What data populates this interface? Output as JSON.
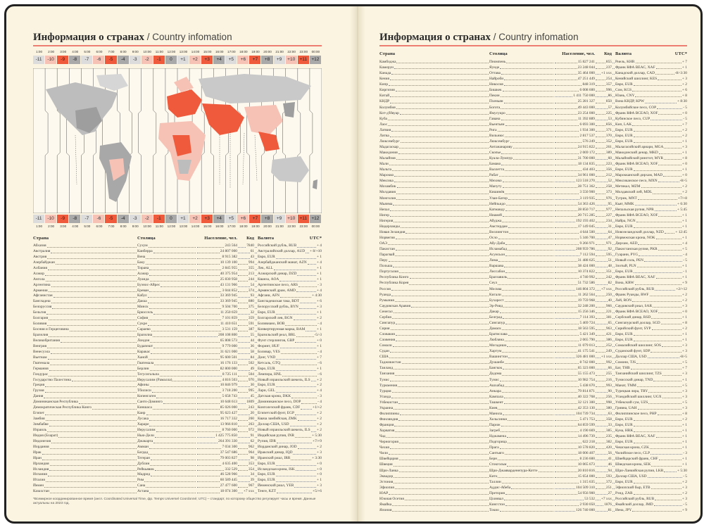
{
  "title_ru": "Информация о странах",
  "title_en": "/ Country infomation",
  "columns": {
    "country": "Страна",
    "capital": "Столица",
    "population": "Население, чел.",
    "code": "Код",
    "currency": "Валюта",
    "utc": "UTC*"
  },
  "timezones": {
    "offsets": [
      "-11",
      "-10",
      "-9",
      "-8",
      "-7",
      "-6",
      "-5",
      "-4",
      "-3",
      "-2",
      "-1",
      "0",
      "+1",
      "+2",
      "+3",
      "+4",
      "+5",
      "+6",
      "+7",
      "+8",
      "+9",
      "+10",
      "+11",
      "+12"
    ],
    "times": [
      "1:00",
      "2:00",
      "3:00",
      "4:00",
      "5:00",
      "6:00",
      "7:00",
      "8:00",
      "9:00",
      "10:00",
      "11:00",
      "12:00",
      "13:00",
      "14:00",
      "15:00",
      "16:00",
      "17:00",
      "18:00",
      "19:00",
      "20:00",
      "21:00",
      "22:00",
      "23:00",
      "00:00"
    ],
    "colors": {
      "light": "#dcdcdc",
      "pink": "#f6c2b6",
      "red": "#f05a3c",
      "dark": "#a9a9a9"
    }
  },
  "left_rows": [
    [
      "Абхазия",
      "Сухум",
      "243 564",
      "7840",
      "Российский рубль, RUB",
      "+ 4"
    ],
    [
      "Австралия",
      "Канберра",
      "24 807 000",
      "61",
      "Австралийский доллар, AUD",
      "+ 8/+10"
    ],
    [
      "Австрия",
      "Вена",
      "8 915 382",
      "43",
      "Евро, EUR",
      "+ 1"
    ],
    [
      "Азербайджан",
      "Баку",
      "10 139 100",
      "994",
      "Азербайджанский манат, AZN",
      "+ 4"
    ],
    [
      "Албания",
      "Тирана",
      "2 845 955",
      "355",
      "Лек, ALL",
      "+ 1"
    ],
    [
      "Алжир",
      "Алжир",
      "40 375 954",
      "213",
      "Алжирский динар, DZD",
      "+ 1"
    ],
    [
      "Ангола",
      "Луанда",
      "25 830 958",
      "244",
      "Кванза, AOA",
      "+ 1"
    ],
    [
      "Аргентина",
      "Буэнос-Айрес",
      "43 131 966",
      "54",
      "Аргентинское песо, ARS",
      "- 3"
    ],
    [
      "Армения",
      "Ереван",
      "3 044 852",
      "374",
      "Армянский драм, AMD",
      "+ 4"
    ],
    [
      "Афганистан",
      "Кабул",
      "33 369 945",
      "93",
      "Афгани, AFN",
      "+ 4:30"
    ],
    [
      "Бангладеш",
      "Дакка",
      "33 369 945",
      "880",
      "Бангладешская така, BDT",
      "+ 6"
    ],
    [
      "Белоруссия",
      "Минск",
      "9 504 700",
      "375",
      "Белорусский рубль, BYN",
      "+ 3"
    ],
    [
      "Бельгия",
      "Брюссель",
      "11 250 659",
      "32",
      "Евро, EUR",
      "+ 1"
    ],
    [
      "Болгария",
      "София",
      "7 101 859",
      "359",
      "Болгарский лев, BGN",
      "+ 2"
    ],
    [
      "Боливия",
      "Сукре",
      "11 410 651",
      "591",
      "Боливиано, BOB",
      "- 4"
    ],
    [
      "Босния и Герцеговина",
      "Сараево",
      "3 531 159",
      "387",
      "Конвертируемая марка, BAM",
      "+ 1"
    ],
    [
      "Бразилия",
      "Бразилиа",
      "208 108 800",
      "55",
      "Бразильский реал, BRL",
      "-5/-3"
    ],
    [
      "Великобритания",
      "Лондон",
      "65 808 573",
      "44",
      "Фунт стерлингов, GBP",
      "+ 0"
    ],
    [
      "Венгрия",
      "Будапешт",
      "9 779 000",
      "36",
      "Форинт, HUF",
      "+ 1"
    ],
    [
      "Венесуэла",
      "Каракас",
      "31 621 000",
      "58",
      "Боливар, VES",
      "- 4"
    ],
    [
      "Вьетнам",
      "Ханой",
      "95 600 501",
      "84",
      "Донг, VND",
      "+ 7"
    ],
    [
      "Гватемала",
      "Гватемала",
      "16 176 133",
      "502",
      "Кетсаль, GTQ",
      "- 6"
    ],
    [
      "Германия",
      "Берлин",
      "82 800 000",
      "49",
      "Евро, EUR",
      "+ 1"
    ],
    [
      "Гондурас",
      "Тегусигальпа",
      "8 725 111",
      "504",
      "Лемпира, HNL",
      "- 6"
    ],
    [
      "Государство Палестина",
      "Иерусалим (Рамалла)",
      "4 816 503",
      "970",
      "Новый израильский шекель, ILS",
      "+ 2"
    ],
    [
      "Греция",
      "Афины",
      "10 846 979",
      "30",
      "Евро, EUR",
      "+ 2"
    ],
    [
      "Грузия",
      "Тбилиси",
      "3 718 200",
      "995",
      "Лари, GEL",
      "+ 4"
    ],
    [
      "Дания",
      "Копенгаген",
      "5 658 743",
      "45",
      "Датская крона, DKK",
      "- 3"
    ],
    [
      "Доминиканская Республика",
      "Санто-Доминго",
      "10 648 613",
      "1809",
      "Доминиканское песо, DOP",
      "- 4"
    ],
    [
      "Демократическая Республика Конго",
      "Киншаса",
      "85 026 000",
      "243",
      "Конголезский франк, CDF",
      "+1/+2"
    ],
    [
      "Египет",
      "Каир",
      "95 623 427",
      "20",
      "Египетский фунт, EGP",
      "+ 2"
    ],
    [
      "Замбия",
      "Лусака",
      "16 717 332",
      "260",
      "Квача замбийская, ZMK",
      "+ 2"
    ],
    [
      "Зимбабве",
      "Хараре",
      "13 966 810",
      "263",
      "Доллар США, USD",
      "+ 2"
    ],
    [
      "Израиль",
      "Иерусалим",
      "8 760 000",
      "972",
      "Новый израильский шекель, ILS",
      "+ 2"
    ],
    [
      "Индия (Бхарат)",
      "Нью-Дели",
      "1 425 775 850",
      "91",
      "Индийская рупия, INR",
      "+ 5:30"
    ],
    [
      "Индонезия",
      "Джакарта",
      "264 391 330",
      "62",
      "Рупия, IDR",
      "+7/+9"
    ],
    [
      "Иордания",
      "Амман",
      "7 034 300",
      "962",
      "Иорданский динар, JOD",
      "+ 2"
    ],
    [
      "Ирак",
      "Багдад",
      "37 547 686",
      "964",
      "Иракский динар, IQD",
      "+ 3"
    ],
    [
      "Иран",
      "Тегеран",
      "79 003 827",
      "98",
      "Иранский риал, IRR",
      "+ 3:30"
    ],
    [
      "Ирландия",
      "Дублин",
      "4 635 400",
      "353",
      "Евро, EUR",
      "+ 0"
    ],
    [
      "Исландия",
      "Рейкьявик",
      "332 529",
      "354",
      "Исландская крона, ISK",
      "+ 0"
    ],
    [
      "Испания",
      "Мадрид",
      "46 528 966",
      "34",
      "Евро, EUR",
      "+ 0"
    ],
    [
      "Италия",
      "Рим",
      "60 589 445",
      "39",
      "Евро, EUR",
      "+ 1"
    ],
    [
      "Йемен",
      "Сана",
      "27 477 600",
      "967",
      "Йеменский риал, YER",
      "+ 3"
    ],
    [
      "Казахстан",
      "Астана",
      "18 074 300",
      "+7 xxx",
      "Тенге, KZT",
      "+5/+6"
    ]
  ],
  "right_rows": [
    [
      "Камбоджа",
      "Пномпень",
      "15 827 241",
      "855",
      "Риель, KHR",
      "+ 7"
    ],
    [
      "Камерун",
      "Яунде",
      "23 248 044",
      "237",
      "Франк КФА BEAC, XAF",
      "+ 1"
    ],
    [
      "Канада",
      "Оттава",
      "35 464 000",
      "+1 xxx",
      "Канадский доллар, CAD",
      "-8/-3:30"
    ],
    [
      "Кения",
      "Найроби",
      "47 251 449",
      "254",
      "Кенийский шиллинг, KES",
      "+ 3"
    ],
    [
      "Кипр",
      "Никосия",
      "848 319",
      "357",
      "Евро, EUR",
      "+ 2"
    ],
    [
      "Киргизия",
      "Бишкек",
      "6 008 600",
      "996",
      "Сом, KGS",
      "+ 6"
    ],
    [
      "Китай",
      "Пекин",
      "1 411 750 000",
      "86",
      "Юань, CNY",
      "+ 8"
    ],
    [
      "КНДР",
      "Пхеньян",
      "25 281 327",
      "850",
      "Вона КНДР, KPW",
      "+ 8:30"
    ],
    [
      "Колумбия",
      "Богота",
      "49 443 000",
      "57",
      "Колумбийское песо, COP",
      "- 5"
    ],
    [
      "Кот-д'Ивуар",
      "Ямусукро",
      "23 254 000",
      "225",
      "Франк КФА BCEAO, XOF",
      "+ 0"
    ],
    [
      "Куба",
      "Гавана",
      "11 392 889",
      "53",
      "Кубинское песо, CUP",
      "- 5"
    ],
    [
      "Лаос",
      "Вьентьян",
      "6 693 300",
      "856",
      "Кип, LAK",
      "+ 7"
    ],
    [
      "Латвия",
      "Рига",
      "1 934 300",
      "371",
      "Евро, EUR",
      "+ 2"
    ],
    [
      "Литва",
      "Вильнюс",
      "2 817 537",
      "370",
      "Евро, EUR",
      "+ 2"
    ],
    [
      "Люксембург",
      "Люксембург",
      "576 249",
      "352",
      "Евро, EUR",
      "+ 1"
    ],
    [
      "Мадагаскар",
      "Антананариву",
      "24 915 822",
      "261",
      "Малагасийский ариари, MGA",
      "+ 3"
    ],
    [
      "Македония",
      "Скопье",
      "2 069 172",
      "389",
      "Македонский денар, MKD",
      "+ 1"
    ],
    [
      "Малайзия",
      "Куала-Лумпур",
      "31 700 000",
      "60",
      "Малайзийский ринггит, MYR",
      "+ 8"
    ],
    [
      "Мали",
      "Бамако",
      "18 134 835",
      "223",
      "Франк КФА BCEAO, XOF",
      "+ 0"
    ],
    [
      "Мальта",
      "Валлетта",
      "434 403",
      "356",
      "Евро, EUR",
      "+ 1"
    ],
    [
      "Марокко",
      "Рабат",
      "34 961 000",
      "212",
      "Марокканский дирхам, MAD",
      "+ 0"
    ],
    [
      "Мексика",
      "Мехико",
      "123 518 270",
      "52",
      "Мексиканское песо, MXN",
      "-8/-5"
    ],
    [
      "Мозамбик",
      "Мапуту",
      "28 751 362",
      "258",
      "Метикал, MZM",
      "+ 2"
    ],
    [
      "Молдавия",
      "Кишинёв",
      "3 550 900",
      "373",
      "Молдавский лей, MDL",
      "+ 2"
    ],
    [
      "Монголия",
      "Улан-Батор",
      "3 119 935",
      "976",
      "Тугрик, MNT",
      "+7/+8"
    ],
    [
      "Мьянма",
      "Нейпьидо",
      "54 363 426",
      "95",
      "Кьят, MMK",
      "+ 6:30"
    ],
    [
      "Непал",
      "Катманду",
      "28 850 717",
      "977",
      "Непальская рупия, NPR",
      "+ 5:45"
    ],
    [
      "Нигер",
      "Ниамей",
      "20 715 285",
      "227",
      "Франк КФА BCEAO, XOF",
      "+ 1"
    ],
    [
      "Нигерия",
      "Абуджа",
      "192 193 402",
      "234",
      "Найра, NGN",
      "+ 1"
    ],
    [
      "Нидерланды",
      "Амстердам",
      "17 149 045",
      "31",
      "Евро, EUR",
      "+ 1"
    ],
    [
      "Новая Зеландия",
      "Веллингтон",
      "4 644 500",
      "64",
      "Новозеландский доллар, NZD",
      "+ 12:45"
    ],
    [
      "Норвегия",
      "Осло",
      "5 346 700",
      "47",
      "Норвежская крона, NOK",
      "+ 1"
    ],
    [
      "ОАЭ",
      "Абу-Даби",
      "9 266 971",
      "971",
      "Дирхам, AED",
      "+ 4"
    ],
    [
      "Пакистан",
      "Исламабад",
      "208 959 786",
      "92",
      "Пакистанская рупия, PKR",
      "+ 5"
    ],
    [
      "Парагвай",
      "Асунсьон",
      "7 112 594",
      "595",
      "Гуарани, PYG",
      "- 4"
    ],
    [
      "Перу",
      "Лима",
      "31 488 625",
      "51",
      "Новый соль, PEN",
      "- 5"
    ],
    [
      "Польша",
      "Варшава",
      "38 424 000",
      "48",
      "Злотый, PLN",
      "+ 1"
    ],
    [
      "Португалия",
      "Лиссабон",
      "10 374 822",
      "351",
      "Евро, EUR",
      "- 1"
    ],
    [
      "Республика Конго",
      "Браззавиль",
      "4 740 992",
      "242",
      "Франк КФА BEAC, XAF",
      "+ 1"
    ],
    [
      "Республика Корея",
      "Сеул",
      "51 732 586",
      "82",
      "Вона, KRW",
      "+ 9"
    ],
    [
      "Россия",
      "Москва",
      "146 804 372",
      "+7 xxx",
      "Российский рубль, RUB",
      "+2/+12"
    ],
    [
      "Руанда",
      "Кигали",
      "11 262 564",
      "250",
      "Франк Руанды, RWF",
      "+ 2"
    ],
    [
      "Румыния",
      "Бухарест",
      "19 759 968",
      "40",
      "Лей, RON",
      "+ 2"
    ],
    [
      "Саудовская Аравия",
      "Эр-Рияд",
      "32 248 200",
      "966",
      "Саудовский риал, SAR",
      "+ 3"
    ],
    [
      "Сенегал",
      "Дакар",
      "15 256 346",
      "221",
      "Франк КФА BCEAO, XOF",
      "+ 0"
    ],
    [
      "Сербия",
      "Белград",
      "7 114 393",
      "381",
      "Сербский динар, RSD",
      "+ 1"
    ],
    [
      "Сингапур",
      "Сингапур",
      "5 469 724",
      "65",
      "Сингапурский доллар, SGD",
      "+ 8"
    ],
    [
      "Сирия",
      "Дамаск",
      "18 563 595",
      "963",
      "Сирийский фунт, SYP",
      "+ 2"
    ],
    [
      "Словакия",
      "Братислава",
      "5 421 349",
      "421",
      "Евро, EUR",
      "+ 1"
    ],
    [
      "Словения",
      "Любляна",
      "2 065 790",
      "386",
      "Евро, EUR",
      "+ 1"
    ],
    [
      "Сомали",
      "Могадишо",
      "11 079 013",
      "252",
      "Сомалийский шиллинг, SOS",
      "+ 3"
    ],
    [
      "Судан",
      "Хартум",
      "41 175 541",
      "249",
      "Суданский фунт, SDP",
      "+ 3"
    ],
    [
      "США",
      "Вашингтон",
      "326 481 000",
      "+1 xxx",
      "Доллар США, USD",
      "-8/-5"
    ],
    [
      "Таджикистан",
      "Душанбе",
      "8 742 000",
      "992",
      "Сомони, TJS",
      "+ 5"
    ],
    [
      "Таиланд",
      "Бангкок",
      "65 323 000",
      "66",
      "Бат, THB",
      "+ 7"
    ],
    [
      "Танзания",
      "Додома",
      "55 155 473",
      "255",
      "Танзанийский шиллинг, TZS",
      "+ 3"
    ],
    [
      "Тунис",
      "Тунис",
      "10 982 754",
      "216",
      "Тунисский динар, TND",
      "+ 1"
    ],
    [
      "Туркмения",
      "Ашхабад",
      "5 438 670",
      "993",
      "Манат, TMM",
      "+ 5"
    ],
    [
      "Турция",
      "Анкара",
      "79 814 871",
      "90",
      "Турецкая лира, TRY",
      "+ 3"
    ],
    [
      "Уганда",
      "Кампала",
      "40 322 768",
      "256",
      "Угандийский шиллинг, UGX",
      "+ 3"
    ],
    [
      "Узбекистан",
      "Ташкент",
      "32 121 300",
      "998",
      "Узбекский сум, UZS",
      "+ 5"
    ],
    [
      "Украина",
      "Киев",
      "42 353 130",
      "380",
      "Гривна, UAH",
      "+ 3"
    ],
    [
      "Филиппины",
      "Манила",
      "104 739 734",
      "63",
      "Филиппинское песо, PHP",
      "+ 8"
    ],
    [
      "Финляндия",
      "Хельсинки",
      "5 471 753",
      "358",
      "Евро, EUR",
      "+ 2"
    ],
    [
      "Франция",
      "Париж",
      "64 859 599",
      "33",
      "Евро, EUR",
      "+ 1"
    ],
    [
      "Хорватия",
      "Загреб",
      "4 190 669",
      "385",
      "Куна, HRK",
      "+ 1"
    ],
    [
      "Чад",
      "Нджамена",
      "14 496 739",
      "235",
      "Франк КФА BEAC, XAF",
      "+ 1"
    ],
    [
      "Черногория",
      "Подгорица",
      "622 218",
      "382",
      "Евро, EUR",
      "+ 1"
    ],
    [
      "Чехия",
      "Прага",
      "10 578 820",
      "420",
      "Чешская крона, CZK",
      "+ 1"
    ],
    [
      "Чили",
      "Сантьяго",
      "18 006 407",
      "56",
      "Чилийское песо, CLP",
      "- 3"
    ],
    [
      "Швейцария",
      "Берн",
      "8 236 600",
      "41",
      "Швейцарский франк, CHF",
      "+ 1"
    ],
    [
      "Швеция",
      "Стокгольм",
      "10 065 673",
      "46",
      "Шведская крона, SEK",
      "+ 1"
    ],
    [
      "Шри-Ланка",
      "Шри-Джаяварденепура-Котте",
      "20 810 816",
      "94",
      "Шри-Ланкийская рупия, LKR",
      "+ 5:30"
    ],
    [
      "Эквадор",
      "Кито",
      "15 654 000",
      "593",
      "Доллар США, USD",
      "- 5"
    ],
    [
      "Эстония",
      "Таллин",
      "1 315 635",
      "372",
      "Евро, EUR",
      "+ 2"
    ],
    [
      "Эфиопия",
      "Аддис-Абеба",
      "104 509 310",
      "251",
      "Эфиопский быр, ETB",
      "+ 3"
    ],
    [
      "ЮАР",
      "Претория",
      "54 956 900",
      "27",
      "Рэнд, ZAR",
      "+ 2"
    ],
    [
      "Южная Осетия",
      "Цхинвал",
      "53 532",
      "+7 xxx",
      "Российский рубль, RUB",
      "+ 3"
    ],
    [
      "Ямайка",
      "Кингстон",
      "2 930 050",
      "1876",
      "Ямайский доллар, JMD",
      "- 5"
    ],
    [
      "Япония",
      "Токио",
      "126 740 000",
      "81",
      "Иена, JPY",
      "+ 9"
    ]
  ],
  "footnote": "*Всемирное координированное время (англ. Coordinated Universal Time, фр. Temps Universel Coordonné; UTC) – стандарт, по которому общество регулирует часы и время. Данные актуальны на 2023 год."
}
